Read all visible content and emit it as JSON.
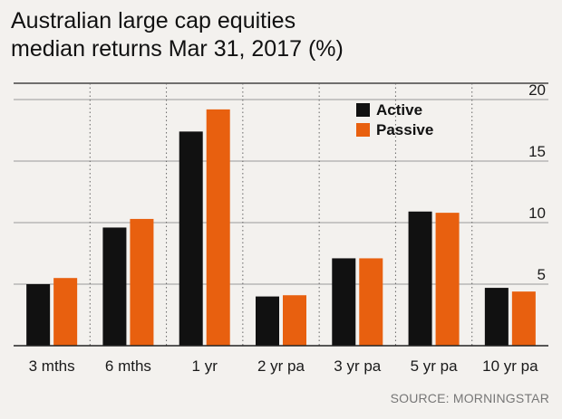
{
  "header": {
    "title_line1": "Australian large cap equities",
    "title_line2": "median returns Mar 31, 2017 (%)"
  },
  "source": "SOURCE: MORNINGSTAR",
  "colors": {
    "active": "#111111",
    "passive": "#e8600f",
    "axis": "#222222",
    "grid": "#999999",
    "background": "#f3f1ee"
  },
  "chart_data": {
    "type": "bar",
    "title": "Australian large cap equities median returns Mar 31, 2017 (%)",
    "categories": [
      "3 mths",
      "6 mths",
      "1 yr",
      "2 yr pa",
      "3 yr pa",
      "5 yr pa",
      "10 yr pa"
    ],
    "series": [
      {
        "name": "Active",
        "color": "#111111",
        "values": [
          5.0,
          9.6,
          17.4,
          4.0,
          7.1,
          10.9,
          4.7
        ]
      },
      {
        "name": "Passive",
        "color": "#e8600f",
        "values": [
          5.5,
          10.3,
          19.2,
          4.1,
          7.1,
          10.8,
          4.4
        ]
      }
    ],
    "ylim": [
      2.5,
      20.5
    ],
    "yticks": [
      5,
      10,
      15,
      20
    ],
    "y_axis_position": "right",
    "grid": "horizontal solid, vertical dotted between categories",
    "legend_position": "top-right"
  }
}
